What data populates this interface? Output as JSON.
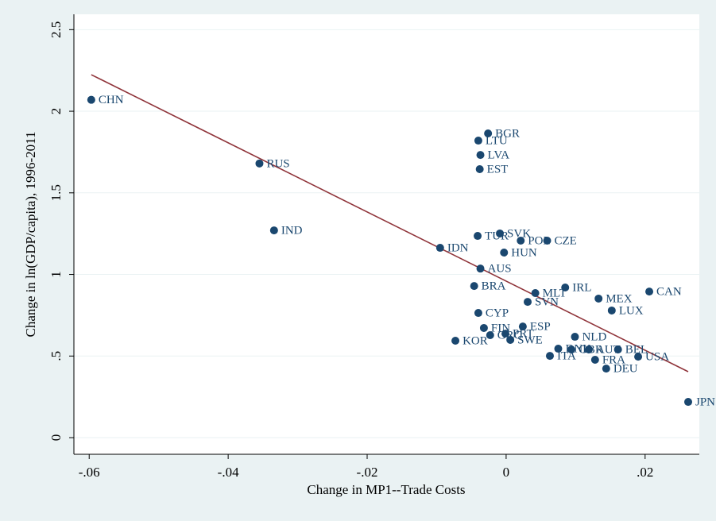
{
  "chart_data": {
    "type": "scatter",
    "x_label": "Change in MP1--Trade Costs",
    "y_label": "Change in ln(GDP/capita), 1996-2011",
    "labels": [
      "CHN",
      "RUS",
      "IND",
      "IDN",
      "BGR",
      "LTU",
      "LVA",
      "EST",
      "TUR",
      "SVK",
      "POL",
      "CZE",
      "HUN",
      "AUS",
      "BRA",
      "MLT",
      "IRL",
      "MEX",
      "CAN",
      "SVN",
      "LUX",
      "CYP",
      "FIN",
      "ESP",
      "GRC",
      "PRT",
      "SWE",
      "KOR",
      "NLD",
      "DNK",
      "GBR",
      "AUT",
      "BEL",
      "USA",
      "ITA",
      "FRA",
      "DEU",
      "JPN"
    ],
    "x": [
      -0.0597,
      -0.0355,
      -0.0334,
      -0.0095,
      -0.0026,
      -0.004,
      -0.0037,
      -0.0038,
      -0.0041,
      -0.0009,
      0.0021,
      0.0059,
      -0.0003,
      -0.0037,
      -0.0046,
      0.0042,
      0.0085,
      0.0133,
      0.0206,
      0.0031,
      0.0152,
      -0.004,
      -0.0032,
      0.0024,
      -0.0023,
      -0.0001,
      0.0006,
      -0.0073,
      0.0099,
      0.0075,
      0.0094,
      0.0119,
      0.0161,
      0.019,
      0.0063,
      0.0128,
      0.0144,
      0.0262
    ],
    "values": [
      2.07,
      1.68,
      1.27,
      1.163,
      1.864,
      1.82,
      1.732,
      1.645,
      1.236,
      1.251,
      1.207,
      1.207,
      1.134,
      1.036,
      0.929,
      0.886,
      0.92,
      0.852,
      0.895,
      0.832,
      0.779,
      0.764,
      0.672,
      0.681,
      0.628,
      0.637,
      0.599,
      0.594,
      0.618,
      0.545,
      0.54,
      0.54,
      0.54,
      0.496,
      0.501,
      0.477,
      0.423,
      0.219
    ],
    "color": "#1a476f",
    "fit": {
      "x": [
        -0.0597,
        0.0262
      ],
      "values": [
        2.224,
        0.404
      ],
      "color": "#90353b"
    },
    "xlim": [
      -0.0622,
      0.0278
    ],
    "ylim": [
      -0.102,
      2.594
    ],
    "xticks": [
      {
        "value": -0.06,
        "label": "-.06"
      },
      {
        "value": -0.04,
        "label": "-.04"
      },
      {
        "value": -0.02,
        "label": "-.02"
      },
      0,
      {
        "value": 0.02,
        "label": ".02"
      }
    ],
    "yticks": [
      0,
      {
        "value": 0.5,
        "label": ".5"
      },
      1,
      1.5,
      2,
      2.5
    ],
    "grid": true
  }
}
